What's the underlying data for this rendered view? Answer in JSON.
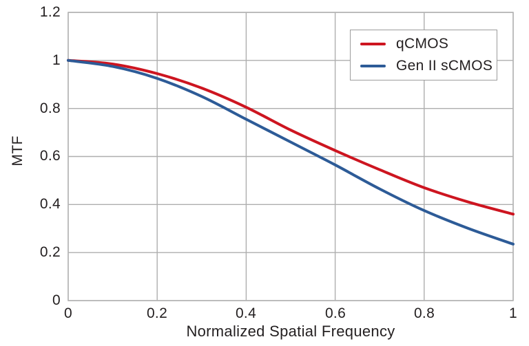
{
  "chart_data": {
    "type": "line",
    "title": "",
    "xlabel": "Normalized Spatial Frequency",
    "ylabel": "MTF",
    "xlim": [
      0,
      1
    ],
    "ylim": [
      0,
      1.2
    ],
    "grid": true,
    "legend_position": "top-right",
    "xticks": {
      "values": [
        0,
        0.2,
        0.4,
        0.6,
        0.8,
        1
      ],
      "labels": [
        "0",
        "0.2",
        "0.4",
        "0.6",
        "0.8",
        "1"
      ]
    },
    "yticks": {
      "values": [
        1.2,
        1,
        0.8,
        0.6,
        0.4,
        0.2,
        0
      ],
      "labels": [
        "1.2",
        "1",
        "0.8",
        "0.6",
        "0.4",
        "0.2",
        "0"
      ]
    },
    "x": [
      0,
      0.1,
      0.2,
      0.3,
      0.4,
      0.5,
      0.6,
      0.7,
      0.8,
      0.9,
      1.0
    ],
    "series": [
      {
        "name": "qCMOS",
        "color": "#cd1520",
        "values": [
          1.0,
          0.985,
          0.945,
          0.885,
          0.805,
          0.71,
          0.625,
          0.545,
          0.47,
          0.41,
          0.36
        ]
      },
      {
        "name": "Gen II sCMOS",
        "color": "#2d5b97",
        "values": [
          1.0,
          0.975,
          0.925,
          0.85,
          0.755,
          0.66,
          0.565,
          0.465,
          0.375,
          0.3,
          0.235
        ]
      }
    ],
    "colors": {
      "grid": "#aeaeae",
      "frame": "#b6b6b6",
      "text": "#231f20",
      "background": "#ffffff"
    },
    "line_width": 4
  }
}
